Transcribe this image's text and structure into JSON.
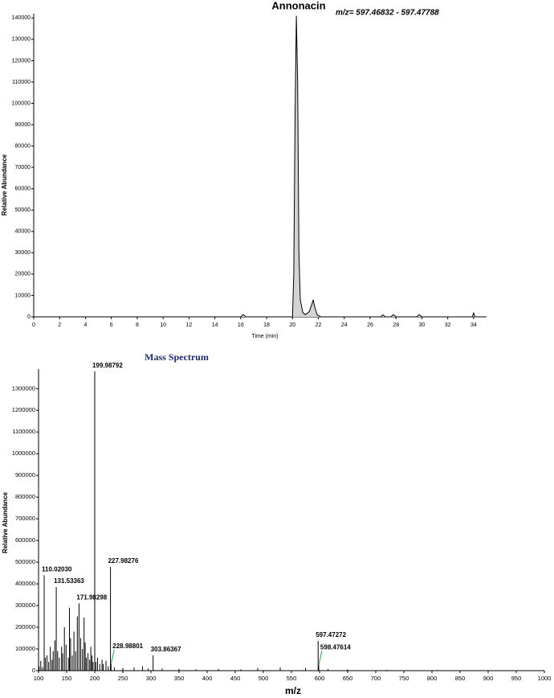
{
  "chart_data": [
    {
      "type": "area",
      "title": "Annonacin",
      "annotation": "m/z= 597.46832 - 597.47788",
      "x_label": "Time (min)",
      "y_label": "Relative Abundance",
      "color": "#d3d3d3",
      "x": [
        0,
        16.0,
        16.2,
        16.4,
        20.0,
        20.1,
        20.2,
        20.3,
        20.4,
        20.5,
        20.6,
        20.8,
        21.0,
        21.3,
        21.5,
        21.6,
        21.7,
        21.9,
        22.2,
        26.8,
        27.0,
        27.2,
        27.6,
        27.8,
        28.0,
        29.6,
        29.8,
        30.0,
        33.9,
        34.0,
        34.1,
        35
      ],
      "values": [
        0,
        0,
        1000,
        0,
        0,
        20000,
        95000,
        141000,
        110000,
        30000,
        8000,
        2000,
        1000,
        2500,
        6000,
        8000,
        5000,
        1000,
        0,
        0,
        900,
        0,
        0,
        1000,
        0,
        0,
        1000,
        0,
        0,
        1800,
        0,
        0
      ],
      "xlim": [
        0,
        35
      ],
      "xticks": [
        0,
        2,
        4,
        6,
        8,
        10,
        12,
        14,
        16,
        18,
        20,
        22,
        24,
        26,
        28,
        30,
        32,
        34
      ],
      "ylim": [
        0,
        142000
      ],
      "yticks": [
        0,
        10000,
        20000,
        30000,
        40000,
        50000,
        60000,
        70000,
        80000,
        90000,
        100000,
        110000,
        120000,
        130000,
        140000
      ]
    },
    {
      "type": "stem",
      "title": "Mass Spectrum",
      "x_label": "m/z",
      "y_label": "Relative Abundance",
      "color": "#000000",
      "x": [
        101,
        104,
        107,
        110.0203,
        112,
        115,
        118,
        121,
        124,
        126,
        129,
        131.53363,
        134,
        137,
        141,
        143,
        146,
        149,
        153,
        155,
        157,
        160,
        163,
        166,
        169,
        171.98298,
        175,
        178,
        181,
        183,
        185,
        188,
        191,
        193,
        195,
        197,
        199.98792,
        202,
        205,
        209,
        213,
        215,
        220,
        224,
        227.98276,
        228.98801,
        235,
        250,
        270,
        285,
        295,
        303.86367,
        320,
        350,
        380,
        420,
        460,
        490,
        530,
        575,
        597.47272,
        598.47614,
        615,
        650,
        720,
        810
      ],
      "values": [
        20000,
        45000,
        15000,
        440000,
        60000,
        70000,
        40000,
        110000,
        50000,
        90000,
        140000,
        385000,
        90000,
        60000,
        110000,
        80000,
        200000,
        120000,
        60000,
        290000,
        150000,
        70000,
        180000,
        90000,
        250000,
        310000,
        150000,
        100000,
        245000,
        130000,
        60000,
        80000,
        50000,
        110000,
        70000,
        40000,
        1380000,
        40000,
        60000,
        30000,
        50000,
        30000,
        45000,
        20000,
        478000,
        30000,
        15000,
        12000,
        15000,
        20000,
        10000,
        70000,
        10000,
        8000,
        6000,
        8000,
        6000,
        12000,
        15000,
        12000,
        137000,
        25000,
        8000,
        6000,
        4000,
        3000
      ],
      "labels": [
        null,
        null,
        null,
        "110.02030",
        null,
        null,
        null,
        null,
        null,
        null,
        null,
        "131.53363",
        null,
        null,
        null,
        null,
        null,
        null,
        null,
        null,
        null,
        null,
        null,
        null,
        null,
        "171.98298",
        null,
        null,
        null,
        null,
        null,
        null,
        null,
        null,
        null,
        null,
        "199.98792",
        null,
        null,
        null,
        null,
        null,
        null,
        null,
        "227.98276",
        "228.98801",
        null,
        null,
        null,
        null,
        null,
        "303.86367",
        null,
        null,
        null,
        null,
        null,
        null,
        null,
        null,
        "597.47272",
        "598.47614",
        null,
        null,
        null,
        null
      ],
      "xlim": [
        100,
        1000
      ],
      "xticks": [
        100,
        150,
        200,
        250,
        300,
        350,
        400,
        450,
        500,
        550,
        600,
        650,
        700,
        750,
        800,
        850,
        900,
        950,
        1000
      ],
      "ylim": [
        0,
        1390000
      ],
      "yticks": [
        0,
        100000,
        200000,
        300000,
        400000,
        500000,
        600000,
        700000,
        800000,
        900000,
        1000000,
        1100000,
        1200000,
        1300000
      ]
    }
  ]
}
